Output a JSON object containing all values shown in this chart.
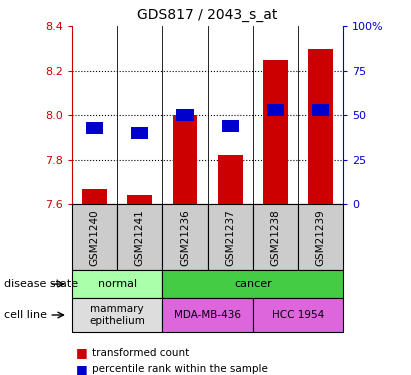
{
  "title": "GDS817 / 2043_s_at",
  "samples": [
    "GSM21240",
    "GSM21241",
    "GSM21236",
    "GSM21237",
    "GSM21238",
    "GSM21239"
  ],
  "bar_values": [
    7.67,
    7.64,
    8.0,
    7.82,
    8.25,
    8.3
  ],
  "bar_base": 7.6,
  "blue_values": [
    43,
    40,
    50,
    44,
    53,
    53
  ],
  "ylim_left": [
    7.6,
    8.4
  ],
  "ylim_right": [
    0,
    100
  ],
  "yticks_left": [
    7.6,
    7.8,
    8.0,
    8.2,
    8.4
  ],
  "yticks_right": [
    0,
    25,
    50,
    75,
    100
  ],
  "bar_color": "#cc0000",
  "blue_color": "#0000cc",
  "disease_state_groups": [
    {
      "label": "normal",
      "cols": [
        0,
        1
      ],
      "color": "#aaffaa"
    },
    {
      "label": "cancer",
      "cols": [
        2,
        3,
        4,
        5
      ],
      "color": "#44cc44"
    }
  ],
  "cell_line_groups": [
    {
      "label": "mammary\nepithelium",
      "cols": [
        0,
        1
      ],
      "color": "#dddddd"
    },
    {
      "label": "MDA-MB-436",
      "cols": [
        2,
        3
      ],
      "color": "#dd66dd"
    },
    {
      "label": "HCC 1954",
      "cols": [
        4,
        5
      ],
      "color": "#dd66dd"
    }
  ],
  "legend_bar_label": "transformed count",
  "legend_blue_label": "percentile rank within the sample",
  "xlabel_disease": "disease state",
  "xlabel_cell": "cell line",
  "tick_color_left": "#cc0000",
  "tick_color_right": "#0000cc",
  "bg_color": "#ffffff",
  "sample_bg_color": "#cccccc"
}
